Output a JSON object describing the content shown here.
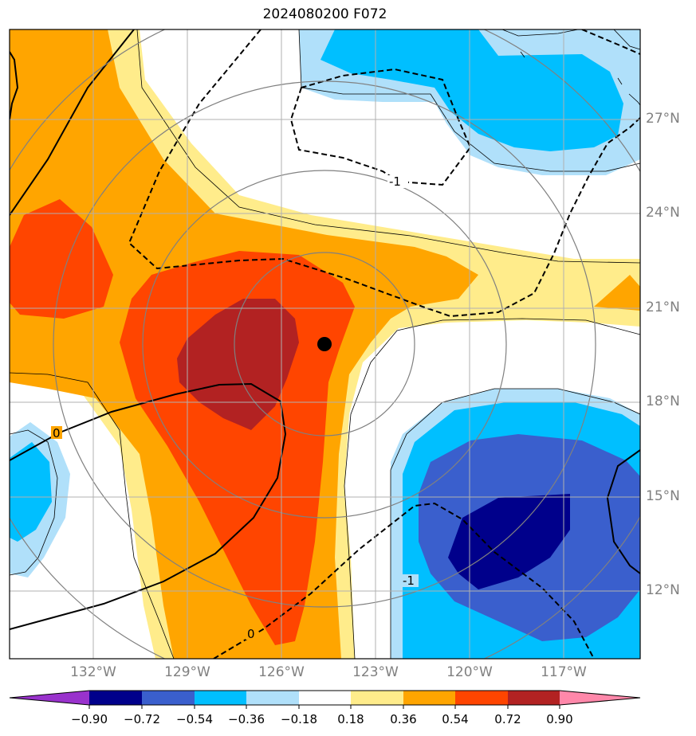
{
  "title": "2024080200 F072",
  "map": {
    "lat_ticks": [
      "27°N",
      "24°N",
      "21°N",
      "18°N",
      "15°N",
      "12°N"
    ],
    "lon_ticks": [
      "132°W",
      "129°W",
      "126°W",
      "123°W",
      "120°W",
      "117°W"
    ],
    "contour_labels": [
      "0",
      "0",
      "-1",
      "-1"
    ],
    "storm_center": {
      "lon": "124.7°W",
      "lat": "19.9°N"
    }
  },
  "colorbar": {
    "levels": [
      "−0.90",
      "−0.72",
      "−0.54",
      "−0.36",
      "−0.18",
      "0.18",
      "0.36",
      "0.54",
      "0.72",
      "0.90"
    ],
    "colors": [
      "#9932cc",
      "#00008b",
      "#3a5fcd",
      "#00bfff",
      "#b0e0fa",
      "#ffffff",
      "#ffec8b",
      "#ffa500",
      "#ff4500",
      "#b22222",
      "#ff88aa"
    ]
  }
}
